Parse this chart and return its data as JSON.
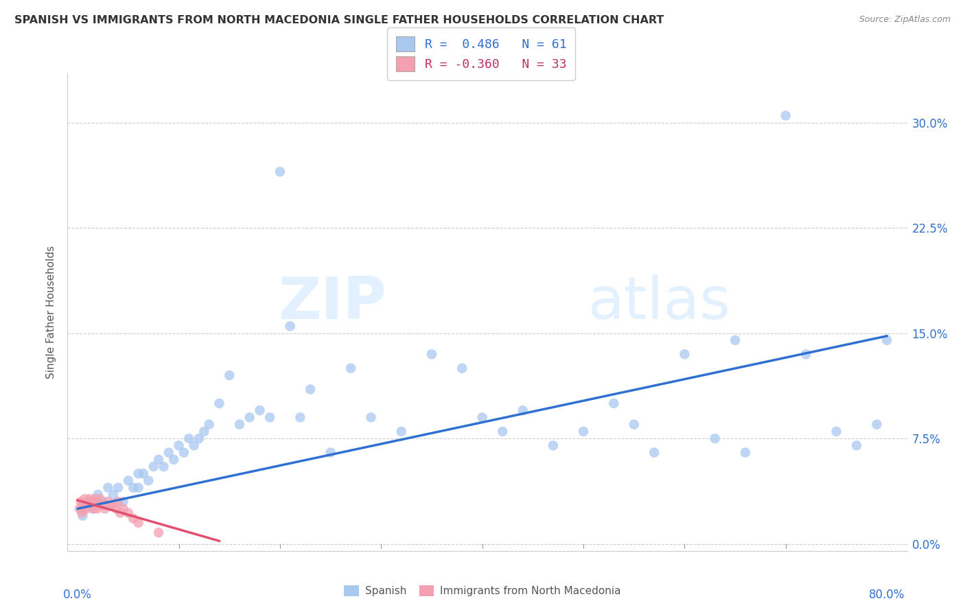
{
  "title": "SPANISH VS IMMIGRANTS FROM NORTH MACEDONIA SINGLE FATHER HOUSEHOLDS CORRELATION CHART",
  "source": "Source: ZipAtlas.com",
  "ylabel": "Single Father Households",
  "ytick_labels": [
    "0.0%",
    "7.5%",
    "15.0%",
    "22.5%",
    "30.0%"
  ],
  "ytick_vals": [
    0.0,
    0.075,
    0.15,
    0.225,
    0.3
  ],
  "xlim": [
    -0.01,
    0.82
  ],
  "ylim": [
    -0.005,
    0.335
  ],
  "blue_color": "#a8c8f0",
  "pink_color": "#f4a0b0",
  "blue_line_color": "#3070d0",
  "pink_line_color": "#e05070",
  "watermark_zip": "ZIP",
  "watermark_atlas": "atlas",
  "blue_scatter_x": [
    0.005,
    0.01,
    0.015,
    0.02,
    0.025,
    0.03,
    0.035,
    0.04,
    0.045,
    0.05,
    0.055,
    0.06,
    0.06,
    0.065,
    0.07,
    0.075,
    0.08,
    0.085,
    0.09,
    0.095,
    0.1,
    0.105,
    0.11,
    0.115,
    0.12,
    0.125,
    0.13,
    0.14,
    0.15,
    0.16,
    0.17,
    0.18,
    0.19,
    0.2,
    0.21,
    0.22,
    0.23,
    0.25,
    0.27,
    0.29,
    0.32,
    0.35,
    0.38,
    0.4,
    0.42,
    0.44,
    0.47,
    0.5,
    0.53,
    0.55,
    0.57,
    0.6,
    0.63,
    0.65,
    0.66,
    0.7,
    0.72,
    0.75,
    0.77,
    0.79,
    0.8
  ],
  "blue_scatter_y": [
    0.02,
    0.03,
    0.025,
    0.035,
    0.03,
    0.04,
    0.035,
    0.04,
    0.03,
    0.045,
    0.04,
    0.05,
    0.04,
    0.05,
    0.045,
    0.055,
    0.06,
    0.055,
    0.065,
    0.06,
    0.07,
    0.065,
    0.075,
    0.07,
    0.075,
    0.08,
    0.085,
    0.1,
    0.12,
    0.085,
    0.09,
    0.095,
    0.09,
    0.265,
    0.155,
    0.09,
    0.11,
    0.065,
    0.125,
    0.09,
    0.08,
    0.135,
    0.125,
    0.09,
    0.08,
    0.095,
    0.07,
    0.08,
    0.1,
    0.085,
    0.065,
    0.135,
    0.075,
    0.145,
    0.065,
    0.305,
    0.135,
    0.08,
    0.07,
    0.085,
    0.145
  ],
  "pink_scatter_x": [
    0.002,
    0.003,
    0.004,
    0.005,
    0.006,
    0.007,
    0.008,
    0.009,
    0.01,
    0.011,
    0.012,
    0.013,
    0.015,
    0.016,
    0.017,
    0.018,
    0.019,
    0.02,
    0.021,
    0.022,
    0.025,
    0.027,
    0.03,
    0.032,
    0.035,
    0.038,
    0.04,
    0.042,
    0.045,
    0.05,
    0.055,
    0.06,
    0.08
  ],
  "pink_scatter_y": [
    0.025,
    0.03,
    0.022,
    0.028,
    0.025,
    0.032,
    0.028,
    0.025,
    0.03,
    0.027,
    0.032,
    0.028,
    0.03,
    0.025,
    0.032,
    0.028,
    0.025,
    0.03,
    0.027,
    0.032,
    0.028,
    0.025,
    0.03,
    0.027,
    0.028,
    0.025,
    0.03,
    0.022,
    0.025,
    0.022,
    0.018,
    0.015,
    0.008
  ],
  "blue_trend_x": [
    0.0,
    0.8
  ],
  "blue_trend_y": [
    0.025,
    0.148
  ],
  "pink_trend_x": [
    0.0,
    0.14
  ],
  "pink_trend_y": [
    0.031,
    0.002
  ]
}
